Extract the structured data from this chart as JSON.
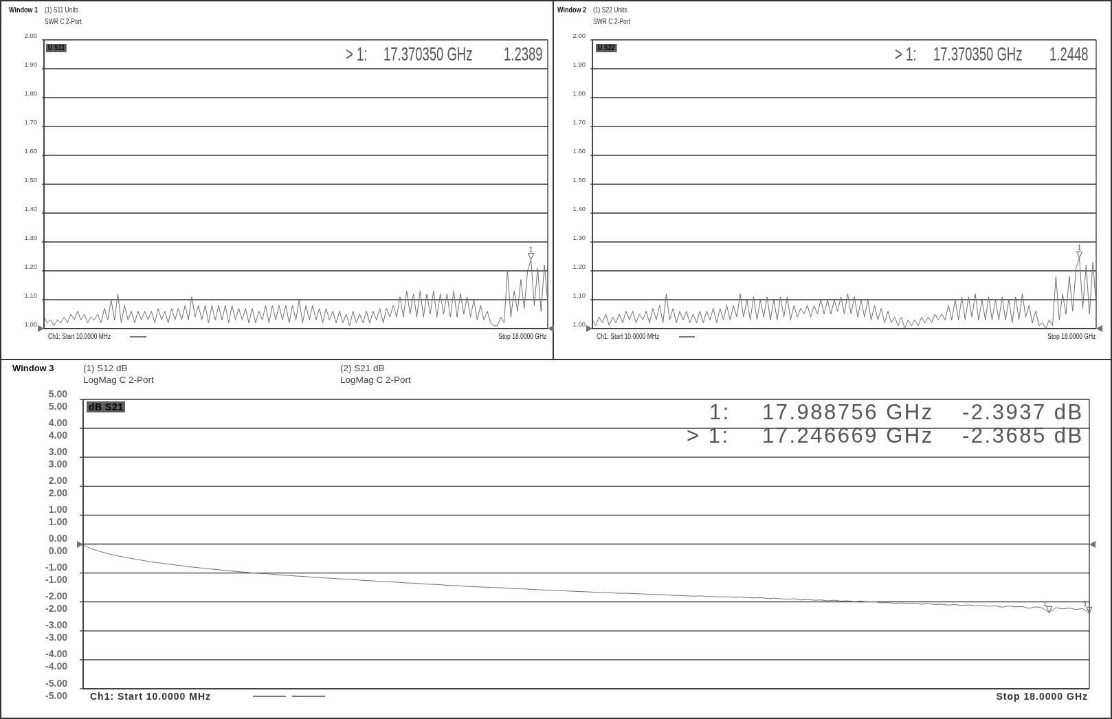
{
  "chart_data": [
    {
      "type": "line",
      "title": "Window 1",
      "annotations": [
        "(1) S11 Units",
        "SWR C 2-Port",
        "U S11",
        "> 1:",
        "17.370350 GHz",
        "1.2389",
        "Ch1: Start 10.0000 MHz",
        "Stop 18.0000 GHz",
        {
          "text": "1",
          "y": 1.2389
        }
      ],
      "categories": [
        null,
        null,
        null,
        null,
        null,
        null,
        null,
        null,
        null,
        null,
        null,
        null,
        null,
        null,
        null,
        null,
        null,
        null,
        null,
        null,
        null,
        null,
        null,
        null,
        null,
        null,
        null,
        null,
        null,
        null,
        null,
        null,
        null,
        null,
        null,
        null,
        null,
        null,
        null,
        null,
        null,
        null,
        null,
        null,
        null,
        null,
        null,
        null,
        null,
        null,
        null,
        null,
        null,
        null,
        null,
        null,
        null,
        null,
        null,
        null,
        null,
        null,
        null,
        null,
        null,
        null,
        null,
        null,
        null,
        null,
        null,
        null,
        null,
        null,
        null,
        null,
        null,
        null,
        null,
        null,
        null,
        null,
        null,
        null,
        null,
        null,
        null,
        null,
        null,
        null,
        null,
        null,
        null,
        null,
        null,
        null,
        null,
        null,
        null,
        null,
        null,
        null,
        null,
        null,
        null,
        null,
        null,
        null,
        null,
        null,
        null,
        null,
        null,
        null,
        null,
        null,
        null,
        null,
        null,
        null,
        null,
        null,
        null,
        null,
        null,
        null,
        null,
        null,
        null,
        null,
        null,
        null,
        null,
        null,
        null,
        null,
        null,
        null,
        null,
        null,
        null,
        null,
        null,
        null,
        null,
        null,
        null,
        null,
        null,
        null,
        null
      ],
      "color": "#6e6e6e",
      "values": [
        1.04,
        1.02,
        1.03,
        1.01,
        1.03,
        1.02,
        1.04,
        1.02,
        1.05,
        1.03,
        1.06,
        1.03,
        1.05,
        1.02,
        1.04,
        1.03,
        1.05,
        1.02,
        1.07,
        1.03,
        1.1,
        1.03,
        1.12,
        1.02,
        1.08,
        1.03,
        1.06,
        1.02,
        1.06,
        1.03,
        1.06,
        1.03,
        1.06,
        1.02,
        1.07,
        1.03,
        1.06,
        1.02,
        1.07,
        1.03,
        1.07,
        1.03,
        1.08,
        1.03,
        1.11,
        1.04,
        1.08,
        1.03,
        1.08,
        1.02,
        1.08,
        1.03,
        1.08,
        1.03,
        1.08,
        1.02,
        1.08,
        1.03,
        1.07,
        1.03,
        1.07,
        1.02,
        1.07,
        1.02,
        1.06,
        1.03,
        1.08,
        1.02,
        1.08,
        1.03,
        1.08,
        1.03,
        1.08,
        1.02,
        1.08,
        1.03,
        1.1,
        1.02,
        1.08,
        1.03,
        1.08,
        1.03,
        1.07,
        1.02,
        1.07,
        1.03,
        1.06,
        1.02,
        1.06,
        1.02,
        1.05,
        1.01,
        1.06,
        1.02,
        1.05,
        1.02,
        1.06,
        1.02,
        1.06,
        1.03,
        1.07,
        1.02,
        1.07,
        1.04,
        1.08,
        1.04,
        1.11,
        1.04,
        1.13,
        1.05,
        1.12,
        1.04,
        1.13,
        1.04,
        1.12,
        1.05,
        1.13,
        1.04,
        1.12,
        1.05,
        1.12,
        1.04,
        1.13,
        1.04,
        1.12,
        1.05,
        1.11,
        1.04,
        1.1,
        1.03,
        1.08,
        1.03,
        1.06,
        1.02,
        1.01,
        1.01,
        1.04,
        1.02,
        1.2,
        1.04,
        1.13,
        1.06,
        1.17,
        1.07,
        1.2,
        1.2389,
        1.08,
        1.21,
        1.06,
        1.22,
        1.09
      ],
      "ylim": [
        1,
        2
      ],
      "yticks": [
        {
          "value": 1,
          "label": "1.00"
        },
        {
          "value": 1.1,
          "label": "1.10"
        },
        {
          "value": 1.2,
          "label": "1.20"
        },
        {
          "value": 1.3,
          "label": "1.30"
        },
        {
          "value": 1.4,
          "label": "1.40"
        },
        {
          "value": 1.5,
          "label": "1.50"
        },
        {
          "value": 1.6,
          "label": "1.60"
        },
        {
          "value": 1.7,
          "label": "1.70"
        },
        {
          "value": 1.8,
          "label": "1.80"
        },
        {
          "value": 1.9,
          "label": "1.90"
        },
        {
          "value": 2,
          "label": "2.00"
        }
      ],
      "grid": true,
      "marker": "none"
    },
    {
      "type": "line",
      "title": "Window 2",
      "annotations": [
        "(1) S22 Units",
        "SWR C 2-Port",
        "U S22",
        "> 1:",
        "17.370350 GHz",
        "1.2448",
        "Ch1: Start 10.0000 MHz",
        "Stop 18.0000 GHz",
        {
          "text": "1",
          "y": 1.2448
        }
      ],
      "categories": [
        null,
        null,
        null,
        null,
        null,
        null,
        null,
        null,
        null,
        null,
        null,
        null,
        null,
        null,
        null,
        null,
        null,
        null,
        null,
        null,
        null,
        null,
        null,
        null,
        null,
        null,
        null,
        null,
        null,
        null,
        null,
        null,
        null,
        null,
        null,
        null,
        null,
        null,
        null,
        null,
        null,
        null,
        null,
        null,
        null,
        null,
        null,
        null,
        null,
        null,
        null,
        null,
        null,
        null,
        null,
        null,
        null,
        null,
        null,
        null,
        null,
        null,
        null,
        null,
        null,
        null,
        null,
        null,
        null,
        null,
        null,
        null,
        null,
        null,
        null,
        null,
        null,
        null,
        null,
        null,
        null,
        null,
        null,
        null,
        null,
        null,
        null,
        null,
        null,
        null,
        null,
        null,
        null,
        null,
        null,
        null,
        null,
        null,
        null,
        null,
        null,
        null,
        null,
        null,
        null,
        null,
        null,
        null,
        null,
        null,
        null,
        null,
        null,
        null,
        null,
        null,
        null,
        null,
        null,
        null,
        null,
        null,
        null,
        null,
        null,
        null,
        null,
        null,
        null,
        null,
        null,
        null,
        null,
        null,
        null,
        null,
        null,
        null,
        null,
        null,
        null,
        null,
        null,
        null,
        null,
        null,
        null,
        null,
        null,
        null,
        null
      ],
      "color": "#6e6e6e",
      "values": [
        1.03,
        1.01,
        1.04,
        1.02,
        1.05,
        1.01,
        1.04,
        1.02,
        1.05,
        1.02,
        1.06,
        1.03,
        1.06,
        1.02,
        1.05,
        1.03,
        1.06,
        1.02,
        1.07,
        1.03,
        1.08,
        1.02,
        1.12,
        1.03,
        1.07,
        1.02,
        1.06,
        1.03,
        1.06,
        1.02,
        1.05,
        1.02,
        1.06,
        1.02,
        1.06,
        1.03,
        1.07,
        1.02,
        1.07,
        1.03,
        1.08,
        1.03,
        1.08,
        1.04,
        1.12,
        1.04,
        1.1,
        1.03,
        1.11,
        1.03,
        1.1,
        1.04,
        1.11,
        1.03,
        1.1,
        1.03,
        1.11,
        1.04,
        1.11,
        1.03,
        1.08,
        1.04,
        1.07,
        1.05,
        1.08,
        1.04,
        1.08,
        1.05,
        1.1,
        1.05,
        1.1,
        1.05,
        1.1,
        1.06,
        1.11,
        1.05,
        1.12,
        1.05,
        1.11,
        1.04,
        1.1,
        1.04,
        1.1,
        1.03,
        1.08,
        1.03,
        1.07,
        1.02,
        1.06,
        1.02,
        1.04,
        1.01,
        1.04,
        1.0,
        1.03,
        1.01,
        1.03,
        1.01,
        1.04,
        1.02,
        1.04,
        1.02,
        1.05,
        1.03,
        1.05,
        1.03,
        1.08,
        1.03,
        1.1,
        1.03,
        1.11,
        1.03,
        1.11,
        1.04,
        1.12,
        1.03,
        1.1,
        1.03,
        1.11,
        1.03,
        1.1,
        1.03,
        1.11,
        1.03,
        1.1,
        1.02,
        1.11,
        1.03,
        1.12,
        1.04,
        1.08,
        1.02,
        1.06,
        1.01,
        1.02,
        1.0,
        1.03,
        1.01,
        1.18,
        1.03,
        1.12,
        1.05,
        1.18,
        1.06,
        1.21,
        1.2448,
        1.07,
        1.22,
        1.05,
        1.23,
        1.08
      ],
      "ylim": [
        1,
        2
      ],
      "yticks": [
        {
          "value": 1,
          "label": "1.00"
        },
        {
          "value": 1.1,
          "label": "1.10"
        },
        {
          "value": 1.2,
          "label": "1.20"
        },
        {
          "value": 1.3,
          "label": "1.30"
        },
        {
          "value": 1.4,
          "label": "1.40"
        },
        {
          "value": 1.5,
          "label": "1.50"
        },
        {
          "value": 1.6,
          "label": "1.60"
        },
        {
          "value": 1.7,
          "label": "1.70"
        },
        {
          "value": 1.8,
          "label": "1.80"
        },
        {
          "value": 1.9,
          "label": "1.90"
        },
        {
          "value": 2,
          "label": "2.00"
        }
      ],
      "grid": true,
      "marker": "none"
    },
    {
      "type": "line",
      "title": "Window 3",
      "annotations": [
        "(1) S12 dB",
        "LogMag C 2-Port",
        "(2) S21 dB",
        "LogMag C 2-Port",
        "dB S21",
        "1:",
        "17.988756 GHz",
        "-2.3937 dB",
        "> 1:",
        "17.246669 GHz",
        "-2.3685 dB",
        "Ch1: Start 10.0000 MHz",
        "Stop 18.0000 GHz",
        {
          "text": "1",
          "y": -2.3685
        },
        {
          "text": "1",
          "y": -2.3937
        }
      ],
      "categories": [
        null,
        null,
        null,
        null,
        null,
        null,
        null,
        null,
        null,
        null,
        null,
        null,
        null,
        null,
        null,
        null,
        null,
        null,
        null,
        null,
        null,
        null,
        null,
        null,
        null,
        null,
        null,
        null,
        null,
        null,
        null,
        null,
        null,
        null,
        null,
        null,
        null,
        null,
        null,
        null,
        null,
        null,
        null,
        null,
        null,
        null,
        null,
        null,
        null,
        null,
        null,
        null,
        null,
        null,
        null,
        null,
        null,
        null,
        null,
        null,
        null,
        null,
        null,
        null,
        null,
        null,
        null,
        null,
        null,
        null,
        null,
        null,
        null,
        null,
        null,
        null,
        null,
        null,
        null,
        null,
        null,
        null,
        null,
        null,
        null,
        null,
        null,
        null,
        null,
        null,
        null,
        null,
        null,
        null,
        null,
        null,
        null,
        null,
        null,
        null,
        null,
        null,
        null,
        null,
        null,
        null,
        null,
        null,
        null,
        null,
        null,
        null,
        null,
        null,
        null,
        null,
        null,
        null,
        null,
        null,
        null,
        null,
        null,
        null,
        null,
        null,
        null,
        null,
        null,
        null,
        null,
        null,
        null,
        null,
        null,
        null,
        null,
        null,
        null,
        null,
        null,
        null,
        null,
        null,
        null,
        null,
        null,
        null,
        null,
        null,
        null
      ],
      "color": "#6e6e6e",
      "values": [
        -0.03,
        -0.14,
        -0.22,
        -0.29,
        -0.35,
        -0.4,
        -0.45,
        -0.49,
        -0.53,
        -0.57,
        -0.61,
        -0.64,
        -0.67,
        -0.7,
        -0.73,
        -0.76,
        -0.79,
        -0.81,
        -0.84,
        -0.86,
        -0.88,
        -0.91,
        -0.93,
        -0.95,
        -0.97,
        -0.99,
        -1.01,
        -1.02,
        -1.04,
        -1.06,
        -1.08,
        -1.09,
        -1.11,
        -1.12,
        -1.14,
        -1.15,
        -1.17,
        -1.18,
        -1.2,
        -1.21,
        -1.23,
        -1.24,
        -1.26,
        -1.27,
        -1.29,
        -1.3,
        -1.31,
        -1.32,
        -1.34,
        -1.35,
        -1.36,
        -1.38,
        -1.39,
        -1.4,
        -1.42,
        -1.43,
        -1.44,
        -1.46,
        -1.47,
        -1.48,
        -1.49,
        -1.5,
        -1.51,
        -1.52,
        -1.53,
        -1.54,
        -1.55,
        -1.57,
        -1.58,
        -1.59,
        -1.6,
        -1.61,
        -1.62,
        -1.63,
        -1.64,
        -1.65,
        -1.66,
        -1.67,
        -1.68,
        -1.69,
        -1.7,
        -1.7,
        -1.71,
        -1.72,
        -1.73,
        -1.74,
        -1.75,
        -1.76,
        -1.77,
        -1.78,
        -1.79,
        -1.8,
        -1.79,
        -1.81,
        -1.81,
        -1.83,
        -1.82,
        -1.84,
        -1.83,
        -1.85,
        -1.86,
        -1.85,
        -1.88,
        -1.87,
        -1.89,
        -1.91,
        -1.89,
        -1.93,
        -1.91,
        -1.94,
        -1.93,
        -1.96,
        -1.94,
        -1.97,
        -1.96,
        -1.99,
        -1.97,
        -2.0,
        -1.99,
        -2.03,
        -2.02,
        -2.05,
        -2.03,
        -2.06,
        -2.05,
        -2.08,
        -2.06,
        -2.09,
        -2.08,
        -2.11,
        -2.09,
        -2.12,
        -2.1,
        -2.14,
        -2.12,
        -2.15,
        -2.13,
        -2.18,
        -2.14,
        -2.17,
        -2.16,
        -2.22,
        -2.17,
        -2.21,
        -2.3685,
        -2.2,
        -2.24,
        -2.21,
        -2.26,
        -2.23,
        -2.3937
      ],
      "ylim": [
        -5,
        5
      ],
      "yticks": [
        {
          "value": 5,
          "label": "5.00"
        },
        {
          "value": 4,
          "label": "4.00"
        },
        {
          "value": 3,
          "label": "3.00"
        },
        {
          "value": 2,
          "label": "2.00"
        },
        {
          "value": 1,
          "label": "1.00"
        },
        {
          "value": 0,
          "label": "0.00"
        },
        {
          "value": -1,
          "label": "-1.00"
        },
        {
          "value": -2,
          "label": "-2.00"
        },
        {
          "value": -3,
          "label": "-3.00"
        },
        {
          "value": -4,
          "label": "-4.00"
        },
        {
          "value": -5,
          "label": "-5.00"
        }
      ],
      "y2lim": [
        -5,
        5
      ],
      "y2ticks": [
        {
          "value": 5,
          "label": "5.00"
        },
        {
          "value": 4,
          "label": "4.00"
        },
        {
          "value": 3,
          "label": "3.00"
        },
        {
          "value": 2,
          "label": "2.00"
        },
        {
          "value": 1,
          "label": "1.00"
        },
        {
          "value": 0,
          "label": "0.00"
        },
        {
          "value": -1,
          "label": "-1.00"
        },
        {
          "value": -2,
          "label": "-2.00"
        },
        {
          "value": -3,
          "label": "-3.00"
        },
        {
          "value": -4,
          "label": "-4.00"
        },
        {
          "value": -5,
          "label": "-5.00"
        }
      ],
      "grid": true,
      "marker": "none"
    }
  ]
}
